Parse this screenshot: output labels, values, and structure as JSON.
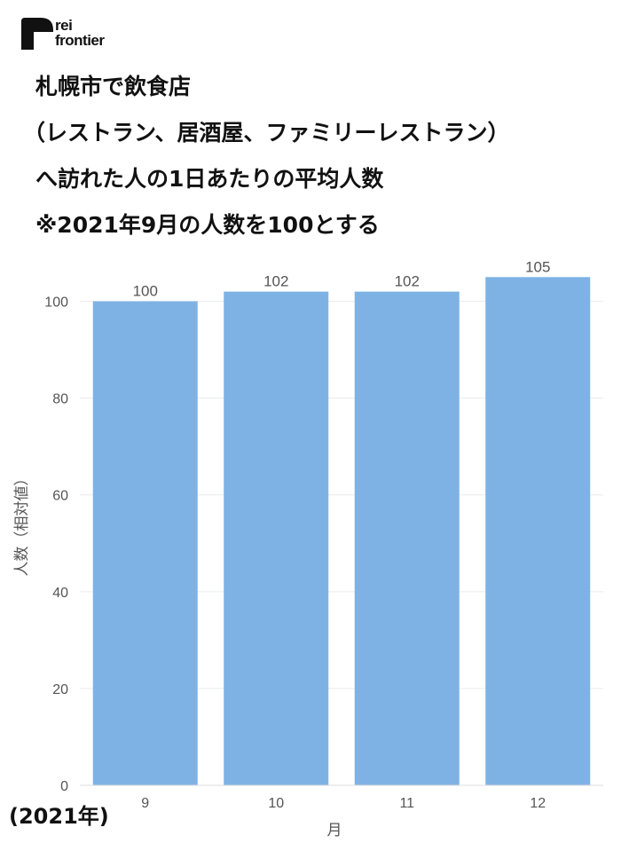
{
  "brand": {
    "line1": "rei",
    "line2": "frontier"
  },
  "title": {
    "lines": [
      "札幌市で飲食店",
      "（レストラン、居酒屋、ファミリーレストラン）",
      "へ訪れた人の1日あたりの平均人数",
      "※2021年9月の人数を100とする"
    ]
  },
  "footnote": "(2021年)",
  "colors": {
    "bar": "#7eb2e4",
    "grid": "#ececec",
    "text": "#555555"
  },
  "chart_data": {
    "type": "bar",
    "categories": [
      "9",
      "10",
      "11",
      "12"
    ],
    "values": [
      100,
      102,
      102,
      105
    ],
    "data_labels": [
      "100",
      "102",
      "102",
      "105"
    ],
    "xlabel": "月",
    "ylabel": "人数（相対値）",
    "ylim": [
      0,
      110
    ],
    "yticks": [
      0,
      20,
      40,
      60,
      80,
      100
    ],
    "grid": true,
    "legend": "none"
  }
}
